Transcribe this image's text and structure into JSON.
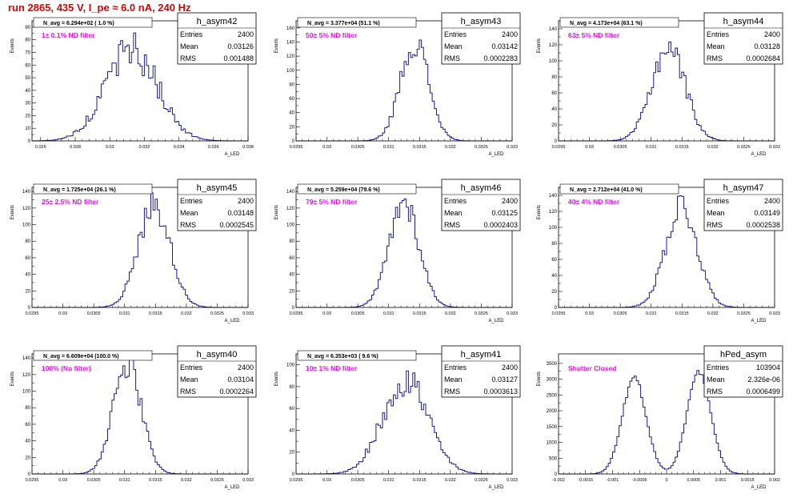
{
  "page": {
    "run_title": "run 2865,   435 V, I_pe ≈ 6.0 nA, 240 Hz"
  },
  "colors": {
    "histogram_line": "#1a1a9a",
    "annotation_magenta": "#ff00ff",
    "title_red": "#e00000",
    "frame": "#000000"
  },
  "chart_data": [
    {
      "type": "histogram",
      "name": "h_asym42",
      "ylabel": "Events",
      "xlabel": "A_LED",
      "navg_label": "N_avg = 6.294e+02 ( 1.0 %)",
      "filter_label": "1± 0.1% ND filter",
      "stats": {
        "entries_label": "Entries",
        "entries": "2400",
        "mean_label": "Mean",
        "mean": "0.03126",
        "rms_label": "RMS",
        "rms": "0.001488"
      },
      "xlim": [
        0.0255,
        0.038
      ],
      "ylim": [
        0,
        95
      ],
      "xticks": [
        "0.026",
        "0.028",
        "0.03",
        "0.032",
        "0.034",
        "0.036",
        "0.038"
      ],
      "yticks": [
        "0",
        "10",
        "20",
        "30",
        "40",
        "50",
        "60",
        "70",
        "80",
        "90"
      ],
      "shape": {
        "peaks": [
          {
            "mu": 0.03126,
            "sigma": 0.001488,
            "h": 72
          }
        ],
        "noise": 0.22
      }
    },
    {
      "type": "histogram",
      "name": "h_asym43",
      "ylabel": "Events",
      "xlabel": "A_LED",
      "navg_label": "N_avg = 3.377e+04 (51.1 %)",
      "filter_label": "50± 5% ND filter",
      "stats": {
        "entries_label": "Entries",
        "entries": "2400",
        "mean_label": "Mean",
        "mean": "0.03142",
        "rms_label": "RMS",
        "rms": "0.0002283"
      },
      "xlim": [
        0.0295,
        0.033
      ],
      "ylim": [
        0,
        170
      ],
      "xticks": [
        "0.0295",
        "0.03",
        "0.0305",
        "0.031",
        "0.0315",
        "0.032",
        "0.0325",
        "0.033"
      ],
      "yticks": [
        "0",
        "20",
        "40",
        "60",
        "80",
        "100",
        "120",
        "140",
        "160"
      ],
      "shape": {
        "peaks": [
          {
            "mu": 0.03142,
            "sigma": 0.0002283,
            "h": 140
          }
        ],
        "noise": 0.15
      }
    },
    {
      "type": "histogram",
      "name": "h_asym44",
      "ylabel": "Events",
      "xlabel": "A_LED",
      "navg_label": "N_avg = 4.173e+04 (63.1 %)",
      "filter_label": "63± 5% ND filter",
      "stats": {
        "entries_label": "Entries",
        "entries": "2400",
        "mean_label": "Mean",
        "mean": "0.03128",
        "rms_label": "RMS",
        "rms": "0.0002684"
      },
      "xlim": [
        0.0295,
        0.033
      ],
      "ylim": [
        0,
        150
      ],
      "xticks": [
        "0.0295",
        "0.03",
        "0.0305",
        "0.031",
        "0.0315",
        "0.032",
        "0.0325",
        "0.033"
      ],
      "yticks": [
        "0",
        "20",
        "40",
        "60",
        "80",
        "100",
        "120",
        "140"
      ],
      "shape": {
        "peaks": [
          {
            "mu": 0.03128,
            "sigma": 0.0002684,
            "h": 118
          }
        ],
        "noise": 0.16
      }
    },
    {
      "type": "histogram",
      "name": "h_asym45",
      "ylabel": "Events",
      "xlabel": "A_LED",
      "navg_label": "N_avg = 1.725e+04 (26.1 %)",
      "filter_label": "25± 2.5% ND filter",
      "stats": {
        "entries_label": "Entries",
        "entries": "2400",
        "mean_label": "Mean",
        "mean": "0.03148",
        "rms_label": "RMS",
        "rms": "0.0002545"
      },
      "xlim": [
        0.0295,
        0.033
      ],
      "ylim": [
        0,
        145
      ],
      "xticks": [
        "0.0295",
        "0.03",
        "0.0305",
        "0.031",
        "0.0315",
        "0.032",
        "0.0325",
        "0.033"
      ],
      "yticks": [
        "0",
        "20",
        "40",
        "60",
        "80",
        "100",
        "120",
        "140"
      ],
      "shape": {
        "peaks": [
          {
            "mu": 0.03148,
            "sigma": 0.0002545,
            "h": 125
          }
        ],
        "noise": 0.15
      }
    },
    {
      "type": "histogram",
      "name": "h_asym46",
      "ylabel": "Events",
      "xlabel": "A_LED",
      "navg_label": "N_avg = 5.259e+04 (79.6 %)",
      "filter_label": "79± 5% ND filter",
      "stats": {
        "entries_label": "Entries",
        "entries": "2400",
        "mean_label": "Mean",
        "mean": "0.03125",
        "rms_label": "RMS",
        "rms": "0.0002403"
      },
      "xlim": [
        0.0295,
        0.033
      ],
      "ylim": [
        0,
        145
      ],
      "xticks": [
        "0.0295",
        "0.03",
        "0.0305",
        "0.031",
        "0.0315",
        "0.032",
        "0.0325",
        "0.033"
      ],
      "yticks": [
        "0",
        "20",
        "40",
        "60",
        "80",
        "100",
        "120",
        "140"
      ],
      "shape": {
        "peaks": [
          {
            "mu": 0.03125,
            "sigma": 0.0002403,
            "h": 128
          }
        ],
        "noise": 0.15
      }
    },
    {
      "type": "histogram",
      "name": "h_asym47",
      "ylabel": "Events",
      "xlabel": "A_LED",
      "navg_label": "N_avg = 2.712e+04 (41.0 %)",
      "filter_label": "40± 4% ND filter",
      "stats": {
        "entries_label": "Entries",
        "entries": "2400",
        "mean_label": "Mean",
        "mean": "0.03149",
        "rms_label": "RMS",
        "rms": "0.0002538"
      },
      "xlim": [
        0.0295,
        0.033
      ],
      "ylim": [
        0,
        150
      ],
      "xticks": [
        "0.0295",
        "0.03",
        "0.0305",
        "0.031",
        "0.0315",
        "0.032",
        "0.0325",
        "0.033"
      ],
      "yticks": [
        "0",
        "20",
        "40",
        "60",
        "80",
        "100",
        "120",
        "140"
      ],
      "shape": {
        "peaks": [
          {
            "mu": 0.03149,
            "sigma": 0.0002538,
            "h": 128
          }
        ],
        "noise": 0.15
      }
    },
    {
      "type": "histogram",
      "name": "h_asym40",
      "ylabel": "Events",
      "xlabel": "A_LED",
      "navg_label": "N_avg = 6.609e+04 (100.0 %)",
      "filter_label": "100% (No filter)",
      "stats": {
        "entries_label": "Entries",
        "entries": "2400",
        "mean_label": "Mean",
        "mean": "0.03104",
        "rms_label": "RMS",
        "rms": "0.0002264"
      },
      "xlim": [
        0.0295,
        0.033
      ],
      "ylim": [
        0,
        145
      ],
      "xticks": [
        "0.0295",
        "0.03",
        "0.0305",
        "0.031",
        "0.0315",
        "0.032",
        "0.0325",
        "0.033"
      ],
      "yticks": [
        "0",
        "20",
        "40",
        "60",
        "80",
        "100",
        "120",
        "140"
      ],
      "shape": {
        "peaks": [
          {
            "mu": 0.03104,
            "sigma": 0.0002264,
            "h": 135
          }
        ],
        "noise": 0.14
      }
    },
    {
      "type": "histogram",
      "name": "h_asym41",
      "ylabel": "Events",
      "xlabel": "A_LED",
      "navg_label": "N_avg = 6.353e+03 ( 9.6 %)",
      "filter_label": "10± 1% ND filter",
      "stats": {
        "entries_label": "Entries",
        "entries": "2400",
        "mean_label": "Mean",
        "mean": "0.03127",
        "rms_label": "RMS",
        "rms": "0.0003613"
      },
      "xlim": [
        0.0295,
        0.033
      ],
      "ylim": [
        0,
        110
      ],
      "xticks": [
        "0.0295",
        "0.03",
        "0.0305",
        "0.031",
        "0.0315",
        "0.032",
        "0.0325",
        "0.033"
      ],
      "yticks": [
        "0",
        "20",
        "40",
        "60",
        "80",
        "100"
      ],
      "shape": {
        "peaks": [
          {
            "mu": 0.03127,
            "sigma": 0.0003613,
            "h": 88
          }
        ],
        "noise": 0.2
      }
    },
    {
      "type": "histogram",
      "name": "hPed_asym",
      "ylabel": "Events",
      "xlabel": "A_LED",
      "navg_label": "",
      "filter_label": "Shutter Closed",
      "stats": {
        "entries_label": "Entries",
        "entries": "103904",
        "mean_label": "Mean",
        "mean": "2.326e-06",
        "rms_label": "RMS",
        "rms": "0.0006499"
      },
      "xlim": [
        -0.002,
        0.002
      ],
      "ylim": [
        0,
        3800
      ],
      "xticks": [
        "-0.002",
        "-0.0015",
        "-0.001",
        "-0.0005",
        "0",
        "0.0005",
        "0.001",
        "0.0015",
        "0.002"
      ],
      "yticks": [
        "0",
        "500",
        "1000",
        "1500",
        "2000",
        "2500",
        "3000",
        "3500"
      ],
      "shape": {
        "peaks": [
          {
            "mu": -0.0006,
            "sigma": 0.00022,
            "h": 3050
          },
          {
            "mu": 0.0006,
            "sigma": 0.00022,
            "h": 3250
          }
        ],
        "noise": 0.03
      }
    }
  ]
}
